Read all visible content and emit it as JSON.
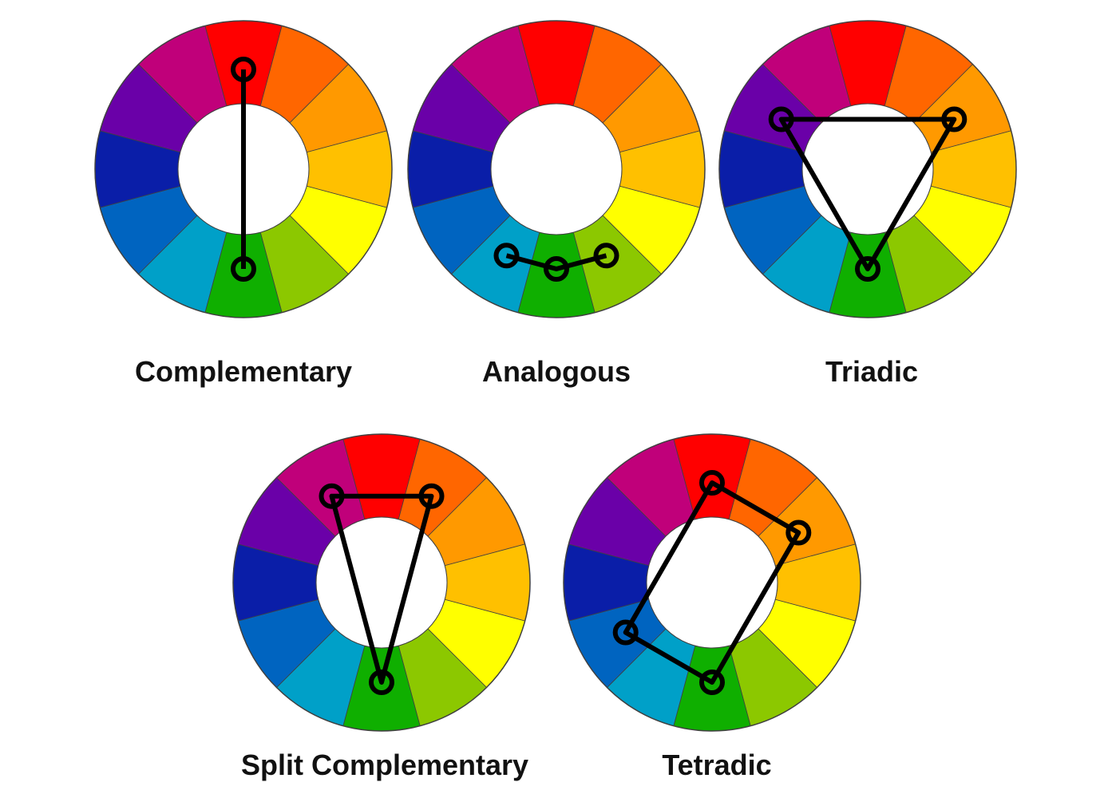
{
  "colors": {
    "outline": "#404040",
    "scheme_line": "#000000",
    "background": "#ffffff",
    "hole": "#ffffff",
    "segments": [
      {
        "name": "red",
        "hex": "#FF0000"
      },
      {
        "name": "red-orange",
        "hex": "#FF6600"
      },
      {
        "name": "orange",
        "hex": "#FF9900"
      },
      {
        "name": "yellow-orange",
        "hex": "#FFC000"
      },
      {
        "name": "yellow",
        "hex": "#FFFF00"
      },
      {
        "name": "yellow-green",
        "hex": "#8CC800"
      },
      {
        "name": "green",
        "hex": "#0FAF00"
      },
      {
        "name": "blue-green",
        "hex": "#00A0C8"
      },
      {
        "name": "blue",
        "hex": "#0064C0"
      },
      {
        "name": "blue-violet",
        "hex": "#0A1EA8"
      },
      {
        "name": "violet",
        "hex": "#6A00A8"
      },
      {
        "name": "red-violet",
        "hex": "#C0007A"
      }
    ]
  },
  "wheels": [
    {
      "id": "complementary",
      "label": "Complementary",
      "markers": [
        0,
        6
      ],
      "closed": false
    },
    {
      "id": "analogous",
      "label": "Analogous",
      "markers": [
        7,
        6,
        5
      ],
      "closed": false
    },
    {
      "id": "triadic",
      "label": "Triadic",
      "markers": [
        10,
        2,
        6
      ],
      "closed": true
    },
    {
      "id": "split-complementary",
      "label": "Split Complementary",
      "markers": [
        11,
        1,
        6
      ],
      "closed": true
    },
    {
      "id": "tetradic",
      "label": "Tetradic",
      "markers": [
        0,
        2,
        6,
        8
      ],
      "closed": true
    }
  ]
}
